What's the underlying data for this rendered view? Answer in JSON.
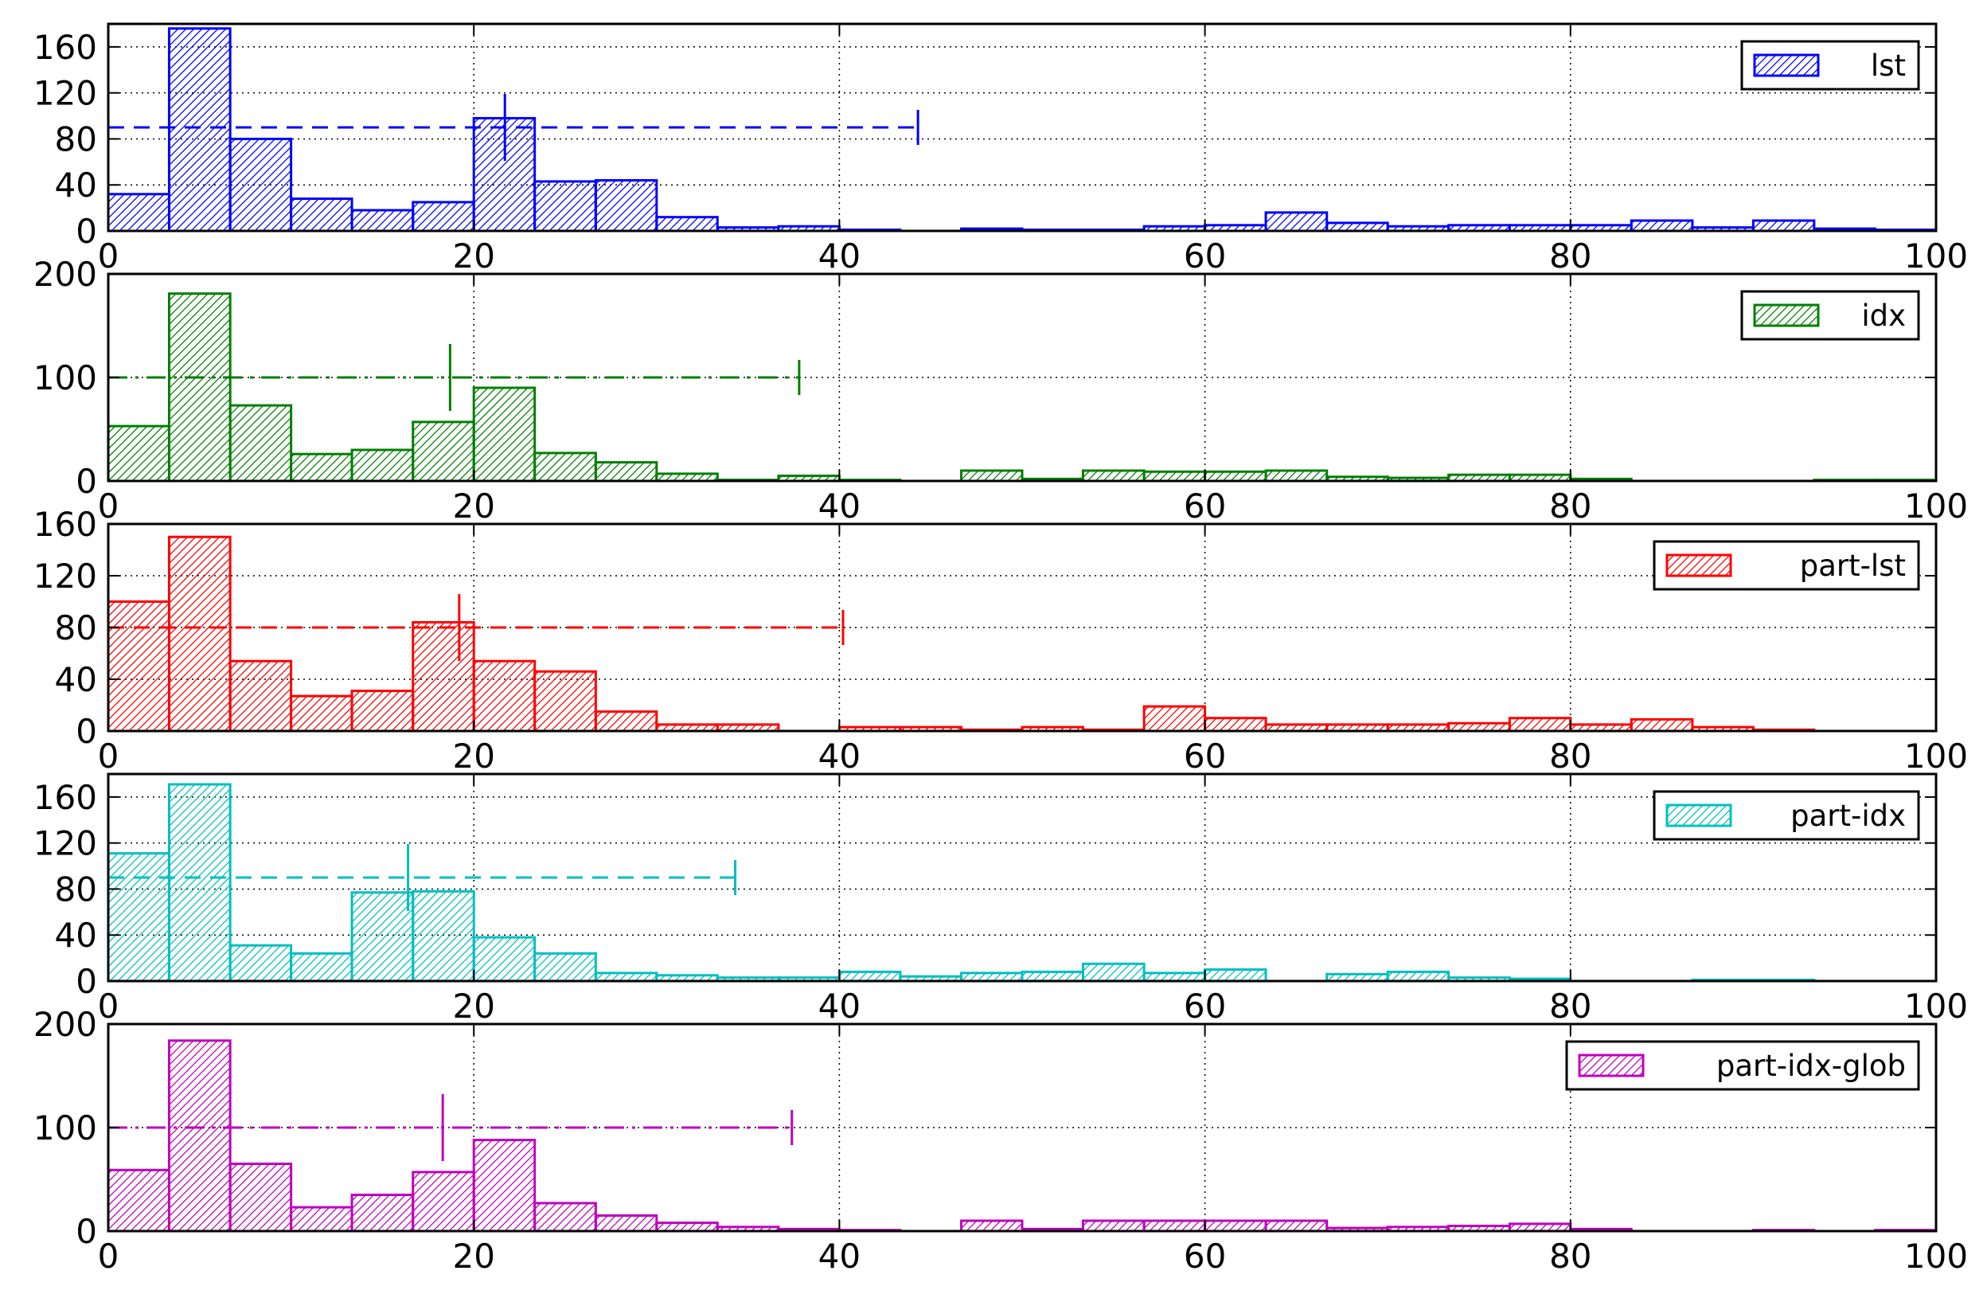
{
  "chart_data": [
    {
      "type": "histogram",
      "legend": {
        "label": "lst",
        "placement": "top-right"
      },
      "color": "#0000ff",
      "xlim": [
        0,
        100
      ],
      "ylim": [
        0,
        180
      ],
      "yticks": [
        0,
        40,
        80,
        120,
        160
      ],
      "xticks": [
        0,
        20,
        40,
        60,
        80,
        100
      ],
      "grid": true,
      "bin_edges": [
        0,
        3.33,
        6.67,
        10,
        13.33,
        16.67,
        20,
        23.33,
        26.67,
        30,
        33.33,
        36.67,
        40,
        43.33,
        46.67,
        50,
        53.33,
        56.67,
        60,
        63.33,
        66.67,
        70,
        73.33,
        76.67,
        80,
        83.33,
        86.67,
        90,
        93.33,
        96.67,
        100
      ],
      "counts": [
        32,
        176,
        80,
        28,
        18,
        25,
        98,
        43,
        44,
        12,
        3,
        4,
        1,
        0,
        2,
        1,
        1,
        4,
        5,
        16,
        7,
        4,
        5,
        5,
        5,
        9,
        3,
        9,
        2,
        1
      ],
      "errorbar": {
        "y": 90,
        "x_center": 21.7,
        "x_low": 0,
        "x_high": 44.3,
        "linestyle": "dashed"
      }
    },
    {
      "type": "histogram",
      "legend": {
        "label": "idx",
        "placement": "top-right"
      },
      "color": "#007f00",
      "xlim": [
        0,
        100
      ],
      "ylim": [
        0,
        200
      ],
      "yticks": [
        0,
        100,
        200
      ],
      "xticks": [
        0,
        20,
        40,
        60,
        80,
        100
      ],
      "grid": true,
      "bin_edges": [
        0,
        3.33,
        6.67,
        10,
        13.33,
        16.67,
        20,
        23.33,
        26.67,
        30,
        33.33,
        36.67,
        40,
        43.33,
        46.67,
        50,
        53.33,
        56.67,
        60,
        63.33,
        66.67,
        70,
        73.33,
        76.67,
        80,
        83.33,
        86.67,
        90,
        93.33,
        96.67,
        100
      ],
      "counts": [
        53,
        181,
        73,
        26,
        30,
        57,
        90,
        27,
        18,
        7,
        1,
        5,
        1,
        0,
        10,
        2,
        10,
        9,
        9,
        10,
        4,
        3,
        6,
        6,
        2,
        0,
        0,
        0,
        1,
        1
      ],
      "errorbar": {
        "y": 100,
        "x_center": 18.7,
        "x_low": 0,
        "x_high": 37.8,
        "linestyle": "dashdot"
      }
    },
    {
      "type": "histogram",
      "legend": {
        "label": "part-lst",
        "placement": "top-right"
      },
      "color": "#ff0000",
      "xlim": [
        0,
        100
      ],
      "ylim": [
        0,
        160
      ],
      "yticks": [
        0,
        40,
        80,
        120,
        160
      ],
      "xticks": [
        0,
        20,
        40,
        60,
        80,
        100
      ],
      "grid": true,
      "bin_edges": [
        0,
        3.33,
        6.67,
        10,
        13.33,
        16.67,
        20,
        23.33,
        26.67,
        30,
        33.33,
        36.67,
        40,
        43.33,
        46.67,
        50,
        53.33,
        56.67,
        60,
        63.33,
        66.67,
        70,
        73.33,
        76.67,
        80,
        83.33,
        86.67,
        90,
        93.33,
        96.67,
        100
      ],
      "counts": [
        100,
        150,
        54,
        27,
        31,
        84,
        54,
        46,
        15,
        5,
        5,
        0,
        3,
        3,
        1,
        3,
        1,
        19,
        10,
        5,
        5,
        5,
        6,
        10,
        5,
        9,
        3,
        1,
        0,
        0
      ],
      "errorbar": {
        "y": 80,
        "x_center": 19.2,
        "x_low": 0,
        "x_high": 40.2,
        "linestyle": "dashed"
      }
    },
    {
      "type": "histogram",
      "legend": {
        "label": "part-idx",
        "placement": "top-right"
      },
      "color": "#00bfbf",
      "xlim": [
        0,
        100
      ],
      "ylim": [
        0,
        180
      ],
      "yticks": [
        0,
        40,
        80,
        120,
        160
      ],
      "xticks": [
        0,
        20,
        40,
        60,
        80,
        100
      ],
      "grid": true,
      "bin_edges": [
        0,
        3.33,
        6.67,
        10,
        13.33,
        16.67,
        20,
        23.33,
        26.67,
        30,
        33.33,
        36.67,
        40,
        43.33,
        46.67,
        50,
        53.33,
        56.67,
        60,
        63.33,
        66.67,
        70,
        73.33,
        76.67,
        80,
        83.33,
        86.67,
        90,
        93.33,
        96.67,
        100
      ],
      "counts": [
        111,
        171,
        31,
        24,
        77,
        78,
        38,
        24,
        7,
        5,
        3,
        3,
        8,
        4,
        7,
        8,
        15,
        7,
        10,
        0,
        6,
        8,
        3,
        2,
        0,
        0,
        1,
        1,
        0,
        0
      ],
      "errorbar": {
        "y": 90,
        "x_center": 16.4,
        "x_low": 0,
        "x_high": 34.3,
        "linestyle": "dashed"
      }
    },
    {
      "type": "histogram",
      "legend": {
        "label": "part-idx-glob",
        "placement": "top-right"
      },
      "color": "#bf00bf",
      "xlim": [
        0,
        100
      ],
      "ylim": [
        0,
        200
      ],
      "yticks": [
        0,
        100,
        200
      ],
      "xticks": [
        0,
        20,
        40,
        60,
        80,
        100
      ],
      "grid": true,
      "bin_edges": [
        0,
        3.33,
        6.67,
        10,
        13.33,
        16.67,
        20,
        23.33,
        26.67,
        30,
        33.33,
        36.67,
        40,
        43.33,
        46.67,
        50,
        53.33,
        56.67,
        60,
        63.33,
        66.67,
        70,
        73.33,
        76.67,
        80,
        83.33,
        86.67,
        90,
        93.33,
        96.67,
        100
      ],
      "counts": [
        59,
        184,
        65,
        23,
        35,
        57,
        88,
        27,
        15,
        8,
        4,
        2,
        1,
        0,
        10,
        2,
        10,
        10,
        10,
        10,
        3,
        4,
        5,
        7,
        2,
        0,
        0,
        1,
        0,
        1
      ],
      "errorbar": {
        "y": 100,
        "x_center": 18.3,
        "x_low": 0,
        "x_high": 37.4,
        "linestyle": "dashdot"
      }
    }
  ]
}
